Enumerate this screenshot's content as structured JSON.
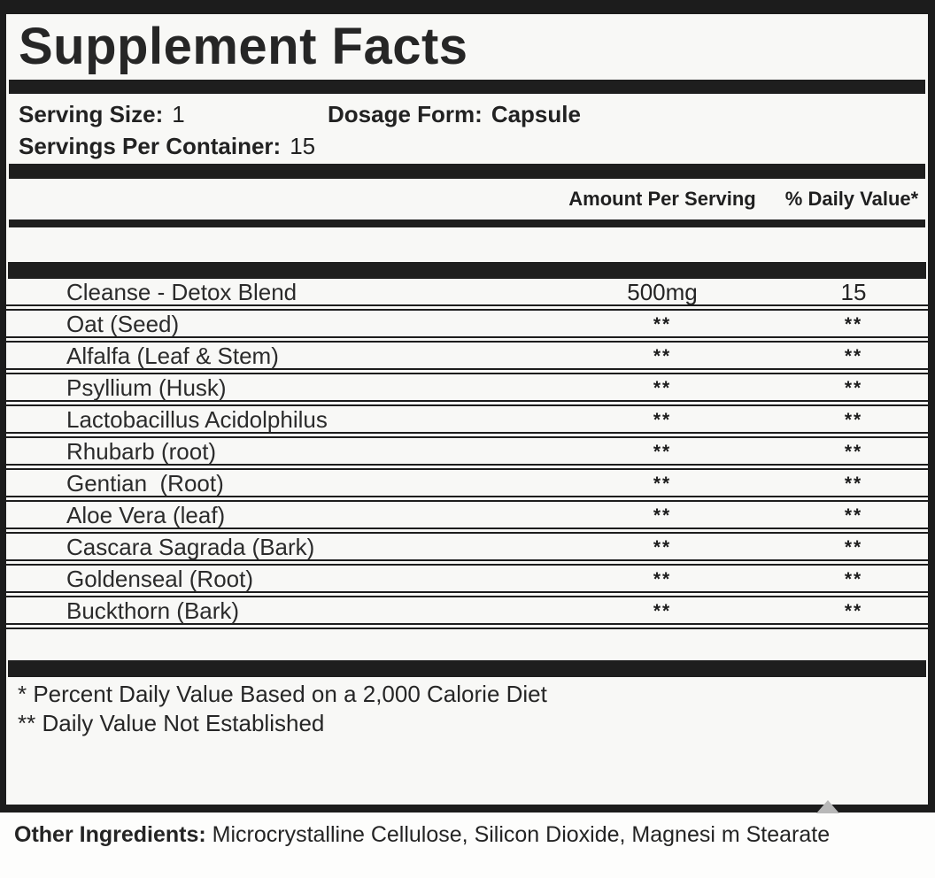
{
  "label": {
    "title": "Supplement Facts",
    "serving": {
      "size_label": "Serving Size:",
      "size_value": "1",
      "dosage_label": "Dosage Form:",
      "dosage_value": "Capsule",
      "per_container_label": "Servings Per Container:",
      "per_container_value": "15"
    },
    "columns": {
      "amount": "Amount Per Serving",
      "dv": "% Daily Value*"
    },
    "rows": [
      {
        "name": "Cleanse - Detox Blend",
        "amount": "500mg",
        "dv": "15"
      },
      {
        "name": "Oat (Seed)",
        "amount": "**",
        "dv": "**"
      },
      {
        "name": "Alfalfa (Leaf & Stem)",
        "amount": "**",
        "dv": "**"
      },
      {
        "name": "Psyllium (Husk)",
        "amount": "**",
        "dv": "**"
      },
      {
        "name": "Lactobacillus Acidolphilus",
        "amount": "**",
        "dv": "**"
      },
      {
        "name": "Rhubarb (root)",
        "amount": "**",
        "dv": "**"
      },
      {
        "name": "Gentian  (Root)",
        "amount": "**",
        "dv": "**"
      },
      {
        "name": "Aloe Vera (leaf)",
        "amount": "**",
        "dv": "**"
      },
      {
        "name": "Cascara Sagrada (Bark)",
        "amount": "**",
        "dv": "**"
      },
      {
        "name": "Goldenseal (Root)",
        "amount": "**",
        "dv": "**"
      },
      {
        "name": "Buckthorn (Bark)",
        "amount": "**",
        "dv": "**"
      }
    ],
    "footnotes": [
      "* Percent Daily Value Based on a 2,000 Calorie Diet",
      "** Daily Value Not Established"
    ],
    "other_ingredients": {
      "label": "Other Ingredients:",
      "value": "Microcrystalline Cellulose, Silicon Dioxide, Magnesi m Stearate"
    }
  },
  "colors": {
    "ink": "#1d1d1d",
    "text": "#262626",
    "paper": "#f8f8f6"
  }
}
